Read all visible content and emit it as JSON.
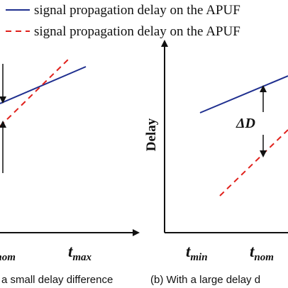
{
  "legend": {
    "solid_label": "signal propagation delay on the APUF",
    "dashed_label": "signal propagation delay on the APUF"
  },
  "colors": {
    "solid_line": "#1f2f8f",
    "dashed_line": "#e0201b",
    "axis": "#111111"
  },
  "panel_a": {
    "ticks": [
      {
        "main": "t",
        "sub": "nom"
      },
      {
        "main": "t",
        "sub": "max"
      }
    ],
    "caption": "a small delay difference"
  },
  "panel_b": {
    "ylabel": "Delay",
    "delta_label": "ΔD",
    "ticks": [
      {
        "main": "t",
        "sub": "min"
      },
      {
        "main": "t",
        "sub": "nom"
      }
    ],
    "caption": "(b) With a large delay d"
  }
}
